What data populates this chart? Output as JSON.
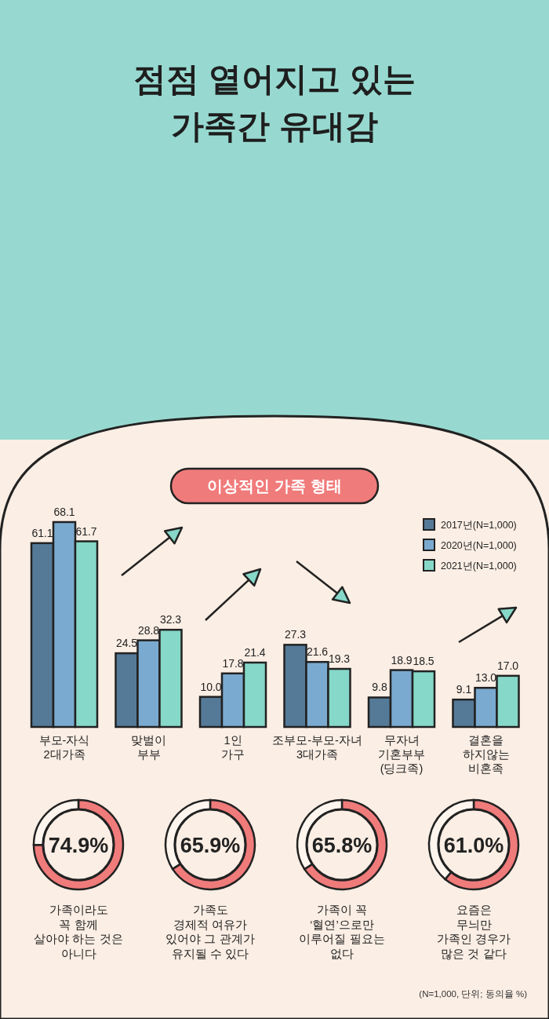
{
  "chart_data": [
    {
      "type": "bar",
      "title": "점점 옅어지고 있는\n가족간 유대감",
      "subtitle": "이상적인 가족 형태",
      "categories": [
        "부모-자식\n2대가족",
        "맞벌이\n부부",
        "1인\n가구",
        "조부모-부모-자녀\n3대가족",
        "무자녀\n기혼부부\n(딩크족)",
        "결혼을\n하지않는\n비혼족"
      ],
      "series": [
        {
          "name": "2017년(N=1,000)",
          "color": "#557a98",
          "values": [
            61.1,
            24.5,
            10.0,
            27.3,
            9.8,
            9.1
          ],
          "value_labels": [
            "61.1",
            "24.5",
            "10.0",
            "27.3",
            "9.8",
            "9.1"
          ]
        },
        {
          "name": "2020년(N=1,000)",
          "color": "#7aaad0",
          "values": [
            68.1,
            28.8,
            17.8,
            21.6,
            18.9,
            13.0
          ],
          "value_labels": [
            "68.1",
            "28.8",
            "17.8",
            "21.6",
            "18.9",
            "13.0"
          ]
        },
        {
          "name": "2021년(N=1,000)",
          "color": "#86d8c8",
          "values": [
            61.7,
            32.3,
            21.4,
            19.3,
            18.5,
            17.0
          ],
          "value_labels": [
            "61.7",
            "32.3",
            "21.4",
            "19.3",
            "18.5",
            "17.0"
          ]
        }
      ],
      "legend": "top right"
    },
    {
      "type": "donut",
      "categories": [
        null,
        null
      ],
      "values": [
        74.9,
        25.1
      ],
      "colors": [
        "#f07b7b",
        "#fdf5ee"
      ],
      "value_labels": [
        "74.9%",
        null
      ],
      "annotations": [
        "가족이라도\n꼭 함께\n살아야 하는 것은\n아니다"
      ]
    },
    {
      "type": "donut",
      "categories": [
        null,
        null
      ],
      "values": [
        65.9,
        34.1
      ],
      "colors": [
        "#f07b7b",
        "#fdf5ee"
      ],
      "value_labels": [
        "65.9%",
        null
      ],
      "annotations": [
        "가족도\n경제적 여유가\n있어야 그 관계가\n유지될 수 있다"
      ]
    },
    {
      "type": "donut",
      "categories": [
        null,
        null
      ],
      "values": [
        65.8,
        34.2
      ],
      "colors": [
        "#f07b7b",
        "#fdf5ee"
      ],
      "value_labels": [
        "65.8%",
        null
      ],
      "annotations": [
        "가족이 꼭\n‘혈연’으로만\n이루어질 필요는\n없다"
      ]
    },
    {
      "type": "donut",
      "categories": [
        null,
        null
      ],
      "values": [
        61.0,
        39.0
      ],
      "colors": [
        "#f07b7b",
        "#fdf5ee"
      ],
      "value_labels": [
        "61.0%",
        null
      ],
      "annotations": [
        "요즘은\n무늬만\n가족인 경우가\n많은 것 같다",
        "(N=1,000, 단위; 동의율 %)"
      ]
    }
  ]
}
